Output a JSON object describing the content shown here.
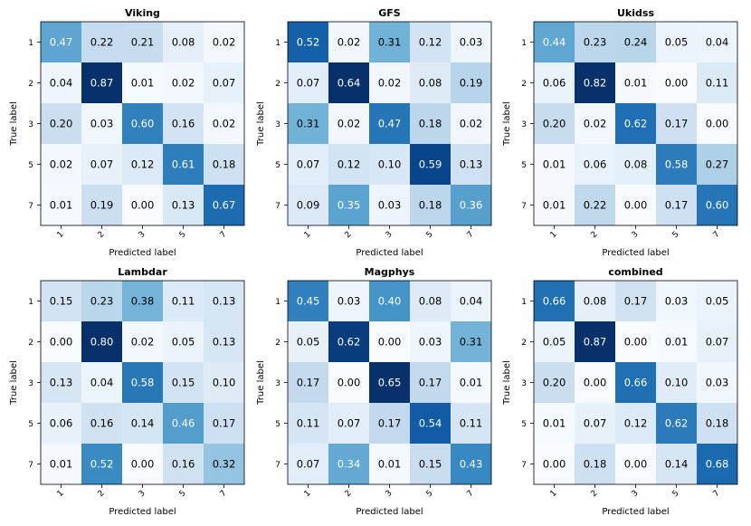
{
  "chart_data": [
    {
      "type": "heatmap",
      "title": "Viking",
      "xlabel": "Predicted label",
      "ylabel": "True label",
      "x_categories": [
        "1",
        "2",
        "3",
        "5",
        "7"
      ],
      "y_categories": [
        "1",
        "2",
        "3",
        "5",
        "7"
      ],
      "values": [
        [
          0.47,
          0.22,
          0.21,
          0.08,
          0.02
        ],
        [
          0.04,
          0.87,
          0.01,
          0.02,
          0.07
        ],
        [
          0.2,
          0.03,
          0.6,
          0.16,
          0.02
        ],
        [
          0.02,
          0.07,
          0.12,
          0.61,
          0.18
        ],
        [
          0.01,
          0.19,
          0.0,
          0.13,
          0.67
        ]
      ]
    },
    {
      "type": "heatmap",
      "title": "GFS",
      "xlabel": "Predicted label",
      "ylabel": "True label",
      "x_categories": [
        "1",
        "2",
        "3",
        "5",
        "7"
      ],
      "y_categories": [
        "1",
        "2",
        "3",
        "5",
        "7"
      ],
      "values": [
        [
          0.52,
          0.02,
          0.31,
          0.12,
          0.03
        ],
        [
          0.07,
          0.64,
          0.02,
          0.08,
          0.19
        ],
        [
          0.31,
          0.02,
          0.47,
          0.18,
          0.02
        ],
        [
          0.07,
          0.12,
          0.1,
          0.59,
          0.13
        ],
        [
          0.09,
          0.35,
          0.03,
          0.18,
          0.36
        ]
      ]
    },
    {
      "type": "heatmap",
      "title": "Ukidss",
      "xlabel": "Predicted label",
      "ylabel": "True label",
      "x_categories": [
        "1",
        "2",
        "3",
        "5",
        "7"
      ],
      "y_categories": [
        "1",
        "2",
        "3",
        "5",
        "7"
      ],
      "values": [
        [
          0.44,
          0.23,
          0.24,
          0.05,
          0.04
        ],
        [
          0.06,
          0.82,
          0.01,
          0.0,
          0.11
        ],
        [
          0.2,
          0.02,
          0.62,
          0.17,
          0.0
        ],
        [
          0.01,
          0.06,
          0.08,
          0.58,
          0.27
        ],
        [
          0.01,
          0.22,
          0.0,
          0.17,
          0.6
        ]
      ]
    },
    {
      "type": "heatmap",
      "title": "Lambdar",
      "xlabel": "Predicted label",
      "ylabel": "True label",
      "x_categories": [
        "1",
        "2",
        "3",
        "5",
        "7"
      ],
      "y_categories": [
        "1",
        "2",
        "3",
        "5",
        "7"
      ],
      "values": [
        [
          0.15,
          0.23,
          0.38,
          0.11,
          0.13
        ],
        [
          0.0,
          0.8,
          0.02,
          0.05,
          0.13
        ],
        [
          0.13,
          0.04,
          0.58,
          0.15,
          0.1
        ],
        [
          0.06,
          0.16,
          0.14,
          0.46,
          0.17
        ],
        [
          0.01,
          0.52,
          0.0,
          0.16,
          0.32
        ]
      ]
    },
    {
      "type": "heatmap",
      "title": "Magphys",
      "xlabel": "Predicted label",
      "ylabel": "True label",
      "x_categories": [
        "1",
        "2",
        "3",
        "5",
        "7"
      ],
      "y_categories": [
        "1",
        "2",
        "3",
        "5",
        "7"
      ],
      "values": [
        [
          0.45,
          0.03,
          0.4,
          0.08,
          0.04
        ],
        [
          0.05,
          0.62,
          0.0,
          0.03,
          0.31
        ],
        [
          0.17,
          0.0,
          0.65,
          0.17,
          0.01
        ],
        [
          0.11,
          0.07,
          0.17,
          0.54,
          0.11
        ],
        [
          0.07,
          0.34,
          0.01,
          0.15,
          0.43
        ]
      ]
    },
    {
      "type": "heatmap",
      "title": "combined",
      "xlabel": "Predicted label",
      "ylabel": "True label",
      "x_categories": [
        "1",
        "2",
        "3",
        "5",
        "7"
      ],
      "y_categories": [
        "1",
        "2",
        "3",
        "5",
        "7"
      ],
      "values": [
        [
          0.66,
          0.08,
          0.17,
          0.03,
          0.05
        ],
        [
          0.05,
          0.87,
          0.0,
          0.01,
          0.07
        ],
        [
          0.2,
          0.0,
          0.66,
          0.1,
          0.03
        ],
        [
          0.01,
          0.07,
          0.12,
          0.62,
          0.18
        ],
        [
          0.0,
          0.18,
          0.0,
          0.14,
          0.68
        ]
      ]
    }
  ],
  "colors": {
    "colormap": [
      "#f7fbff",
      "#deebf7",
      "#c6dbef",
      "#9ecae1",
      "#6baed6",
      "#4292c6",
      "#2171b5",
      "#08519c",
      "#08306b"
    ],
    "text_dark": "#000000",
    "text_light": "#ffffff",
    "frame": "#000000"
  }
}
